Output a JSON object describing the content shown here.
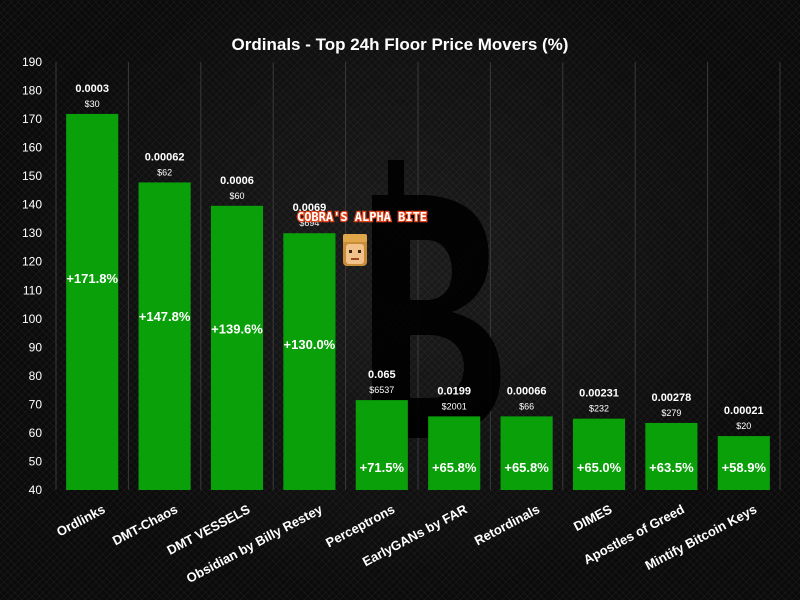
{
  "chart_data": {
    "type": "bar",
    "title": "Ordinals - Top 24h Floor Price Movers (%)",
    "xlabel": "",
    "ylabel": "",
    "ylim": [
      40,
      190
    ],
    "yticks": [
      40,
      50,
      60,
      70,
      80,
      90,
      100,
      110,
      120,
      130,
      140,
      150,
      160,
      170,
      180,
      190
    ],
    "grid": "vertical",
    "legend": "none",
    "bar_color": "#0aa00a",
    "categories": [
      "Ordlinks",
      "DMT-Chaos",
      "DMT VESSELS",
      "Obsidian by Billy Restey",
      "Perceptrons",
      "EarlyGANs by FAR",
      "Retordinals",
      "DIMES",
      "Apostles of Greed",
      "Mintify Bitcoin Keys"
    ],
    "values": [
      171.8,
      147.8,
      139.6,
      130.0,
      71.5,
      65.8,
      65.8,
      65.0,
      63.5,
      58.9
    ],
    "pct_labels": [
      "+171.8%",
      "+147.8%",
      "+139.6%",
      "+130.0%",
      "+71.5%",
      "+65.8%",
      "+65.8%",
      "+65.0%",
      "+63.5%",
      "+58.9%"
    ],
    "floor_btc": [
      "0.0003",
      "0.00062",
      "0.0006",
      "0.0069",
      "0.065",
      "0.0199",
      "0.00066",
      "0.00231",
      "0.00278",
      "0.00021"
    ],
    "floor_usd": [
      "$30",
      "$62",
      "$60",
      "$694",
      "$6537",
      "$2001",
      "$66",
      "$232",
      "$279",
      "$20"
    ]
  },
  "watermark": {
    "text": "COBRA'S ALPHA BITE",
    "icon": "bitcoin-logo-icon",
    "avatar_icon": "pixel-avatar-icon",
    "accent": "#e0431a"
  }
}
